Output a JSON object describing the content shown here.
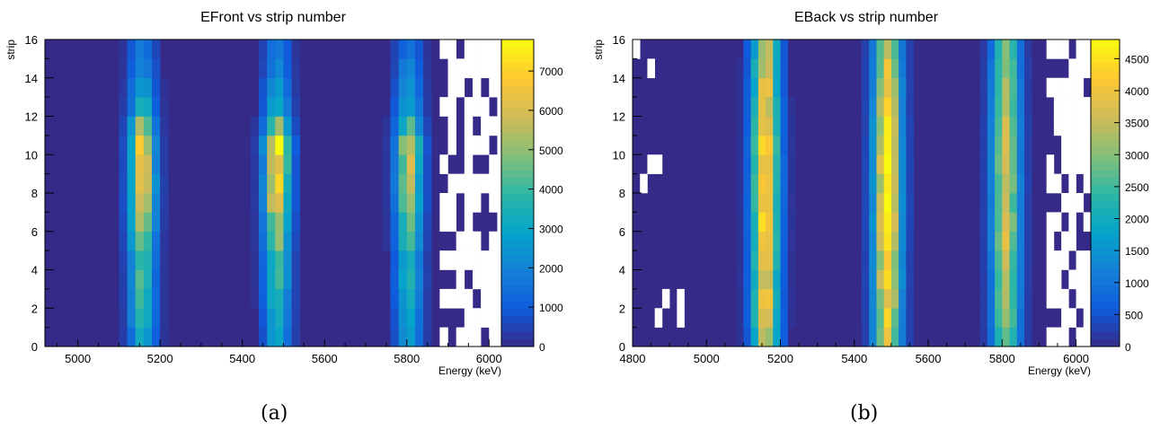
{
  "captions": [
    "(a)",
    "(b)"
  ],
  "colorscale": [
    "#352a87",
    "#0f5cdd",
    "#1481d6",
    "#06a4ca",
    "#2eb7a4",
    "#87bf77",
    "#d1bb59",
    "#fec832",
    "#f9fb0e"
  ],
  "empty_color": "#ffffff",
  "chart_data": [
    {
      "type": "heatmap",
      "title": "EFront vs strip number",
      "xlabel": "Energy (keV)",
      "ylabel": "strip",
      "xlim": [
        4920,
        6030
      ],
      "ylim": [
        0,
        16
      ],
      "x_ticks": [
        5000,
        5200,
        5400,
        5600,
        5800,
        6000
      ],
      "y_ticks": [
        0,
        2,
        4,
        6,
        8,
        10,
        12,
        14,
        16
      ],
      "z_ticks": [
        0,
        1000,
        2000,
        3000,
        4000,
        5000,
        6000,
        7000
      ],
      "zmax": 7800,
      "bins": {
        "x_width": 20,
        "y_width": 1
      },
      "peaks": [
        {
          "center_keV": 5157,
          "sigma_keV": 22,
          "peak_counts": [
            3200,
            3700,
            4000,
            4200,
            4300,
            5100,
            5800,
            6600,
            6800,
            6500,
            6700,
            5200,
            3500,
            2800,
            2200,
            1800
          ]
        },
        {
          "center_keV": 5485,
          "sigma_keV": 22,
          "peak_counts": [
            3000,
            3500,
            3800,
            4100,
            4200,
            5000,
            5700,
            6500,
            6900,
            7000,
            7600,
            5000,
            3300,
            2700,
            2100,
            1800
          ]
        },
        {
          "center_keV": 5805,
          "sigma_keV": 22,
          "peak_counts": [
            2600,
            3000,
            3200,
            3400,
            3500,
            4100,
            4700,
            5400,
            5600,
            5700,
            6000,
            4200,
            3000,
            2500,
            2000,
            1600
          ]
        }
      ],
      "empty_region": {
        "from_keV": 5880,
        "description": "sparse/empty high-energy bins"
      }
    },
    {
      "type": "heatmap",
      "title": "EBack vs strip number",
      "xlabel": "Energy (keV)",
      "ylabel": "strip",
      "xlim": [
        4800,
        6040
      ],
      "ylim": [
        0,
        16
      ],
      "x_ticks": [
        4800,
        5000,
        5200,
        5400,
        5600,
        5800,
        6000
      ],
      "y_ticks": [
        0,
        2,
        4,
        6,
        8,
        10,
        12,
        14,
        16
      ],
      "z_ticks": [
        0,
        500,
        1000,
        1500,
        2000,
        2500,
        3000,
        3500,
        4000,
        4500
      ],
      "zmax": 4800,
      "bins": {
        "x_width": 20,
        "y_width": 1
      },
      "peaks": [
        {
          "center_keV": 5160,
          "sigma_keV": 26,
          "peak_counts": [
            3700,
            3900,
            4000,
            4100,
            4200,
            4300,
            4400,
            4500,
            4600,
            4500,
            4400,
            4300,
            4100,
            3900,
            3700,
            3500
          ]
        },
        {
          "center_keV": 5490,
          "sigma_keV": 26,
          "peak_counts": [
            3800,
            4000,
            4200,
            4300,
            4400,
            4500,
            4600,
            4600,
            4700,
            4700,
            4600,
            4400,
            4200,
            4000,
            3800,
            3600
          ]
        },
        {
          "center_keV": 5810,
          "sigma_keV": 26,
          "peak_counts": [
            3000,
            3200,
            3300,
            3400,
            3500,
            3600,
            3700,
            3700,
            3800,
            3800,
            3700,
            3600,
            3400,
            3200,
            3100,
            2900
          ]
        }
      ],
      "empty_region": {
        "from_keV": 5920,
        "description": "sparse/empty high-energy bins and a few empty low-energy bins"
      }
    }
  ]
}
